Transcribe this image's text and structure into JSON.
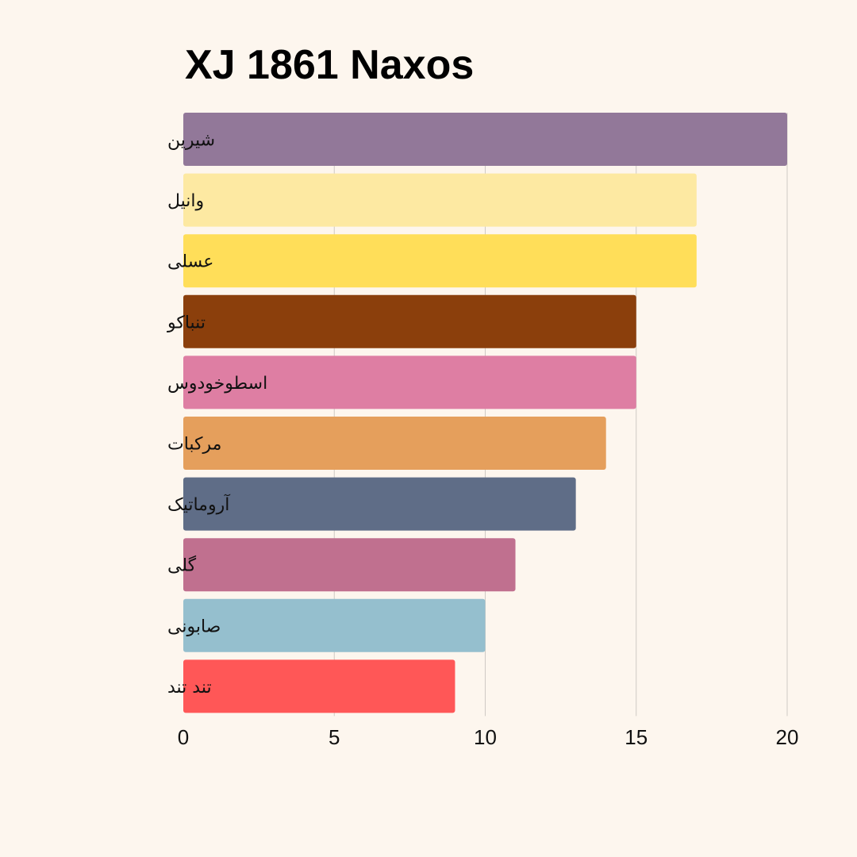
{
  "chart_data": {
    "type": "bar",
    "orientation": "horizontal",
    "title": "XJ 1861 Naxos",
    "categories": [
      "شیرین",
      "وانیل",
      "عسلی",
      "تنباکو",
      "اسطوخودوس",
      "مرکبات",
      "آروماتیک",
      "گلی",
      "صابونی",
      "تند تند"
    ],
    "values": [
      20,
      17,
      17,
      15,
      15,
      14,
      13,
      11,
      10,
      9
    ],
    "colors": [
      "#927899",
      "#fde9a2",
      "#ffde59",
      "#8b3f0c",
      "#de7ea3",
      "#e59f5c",
      "#5f6d87",
      "#c0708f",
      "#95bfce",
      "#ff5757"
    ],
    "xlim": [
      0,
      20
    ],
    "xticks": [
      "0",
      "5",
      "10",
      "15",
      "20"
    ],
    "xlabel": "",
    "ylabel": "",
    "grid": true,
    "background": "#fdf6ee"
  }
}
